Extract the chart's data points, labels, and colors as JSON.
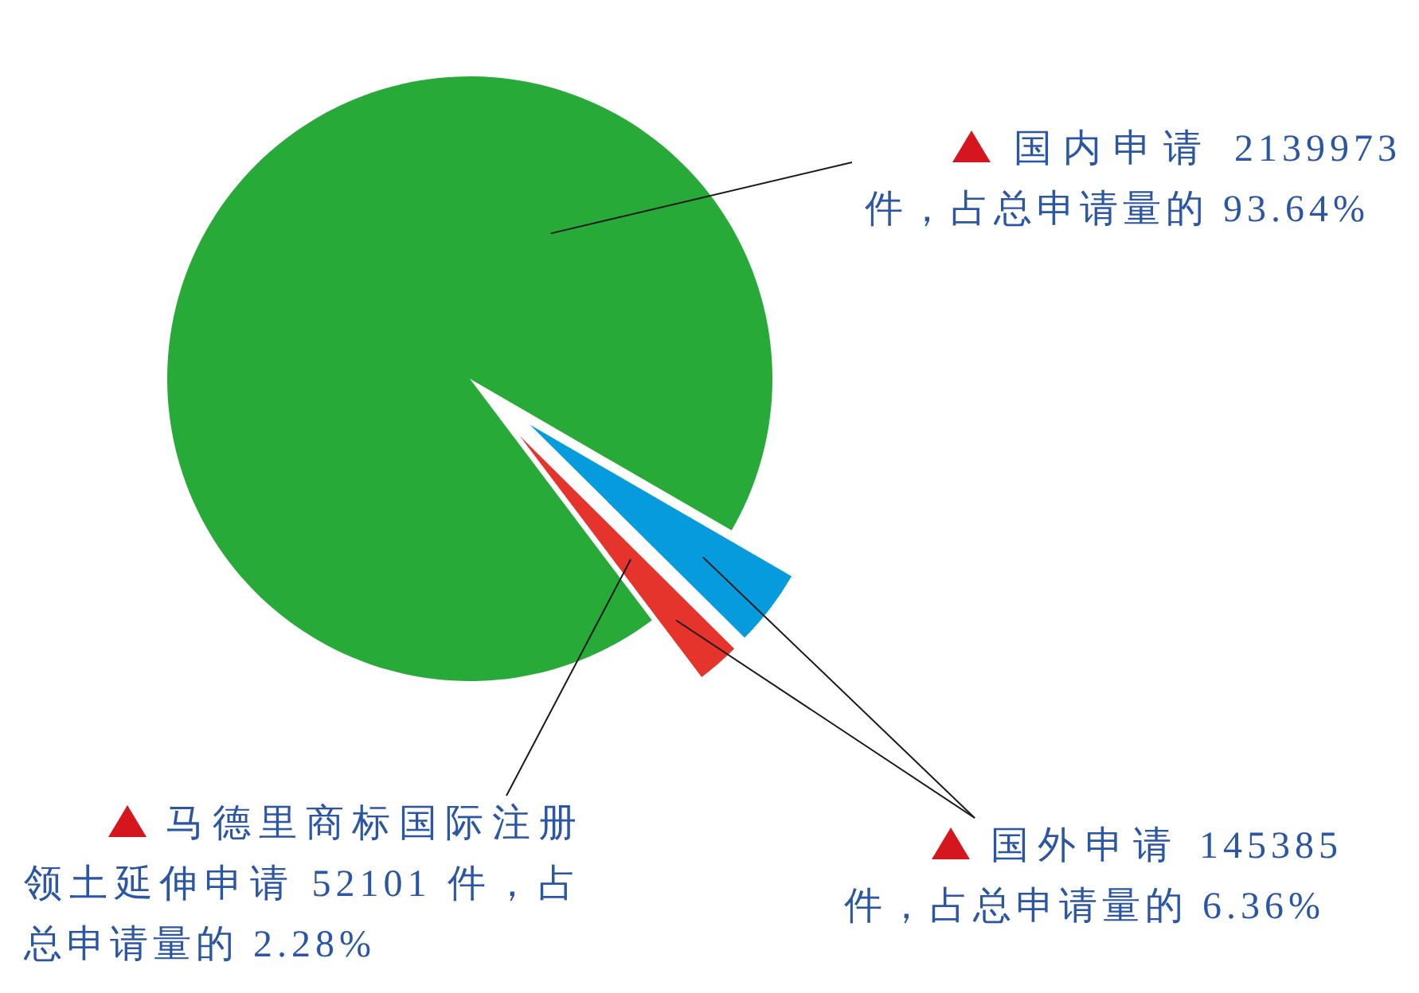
{
  "chart_data": {
    "type": "pie",
    "categories": [
      "国内申请 2139973 件，占总申请量的 93.64%",
      "国外申请 145385 件，占总申请量的 6.36%",
      "马德里商标国际注册领土延伸申请 52101 件，占总申请量的 2.28%"
    ],
    "values": [
      93.64,
      4.08,
      2.28
    ],
    "colors": [
      "#27aa38",
      "#069bdc",
      "#e5342b"
    ]
  }
}
